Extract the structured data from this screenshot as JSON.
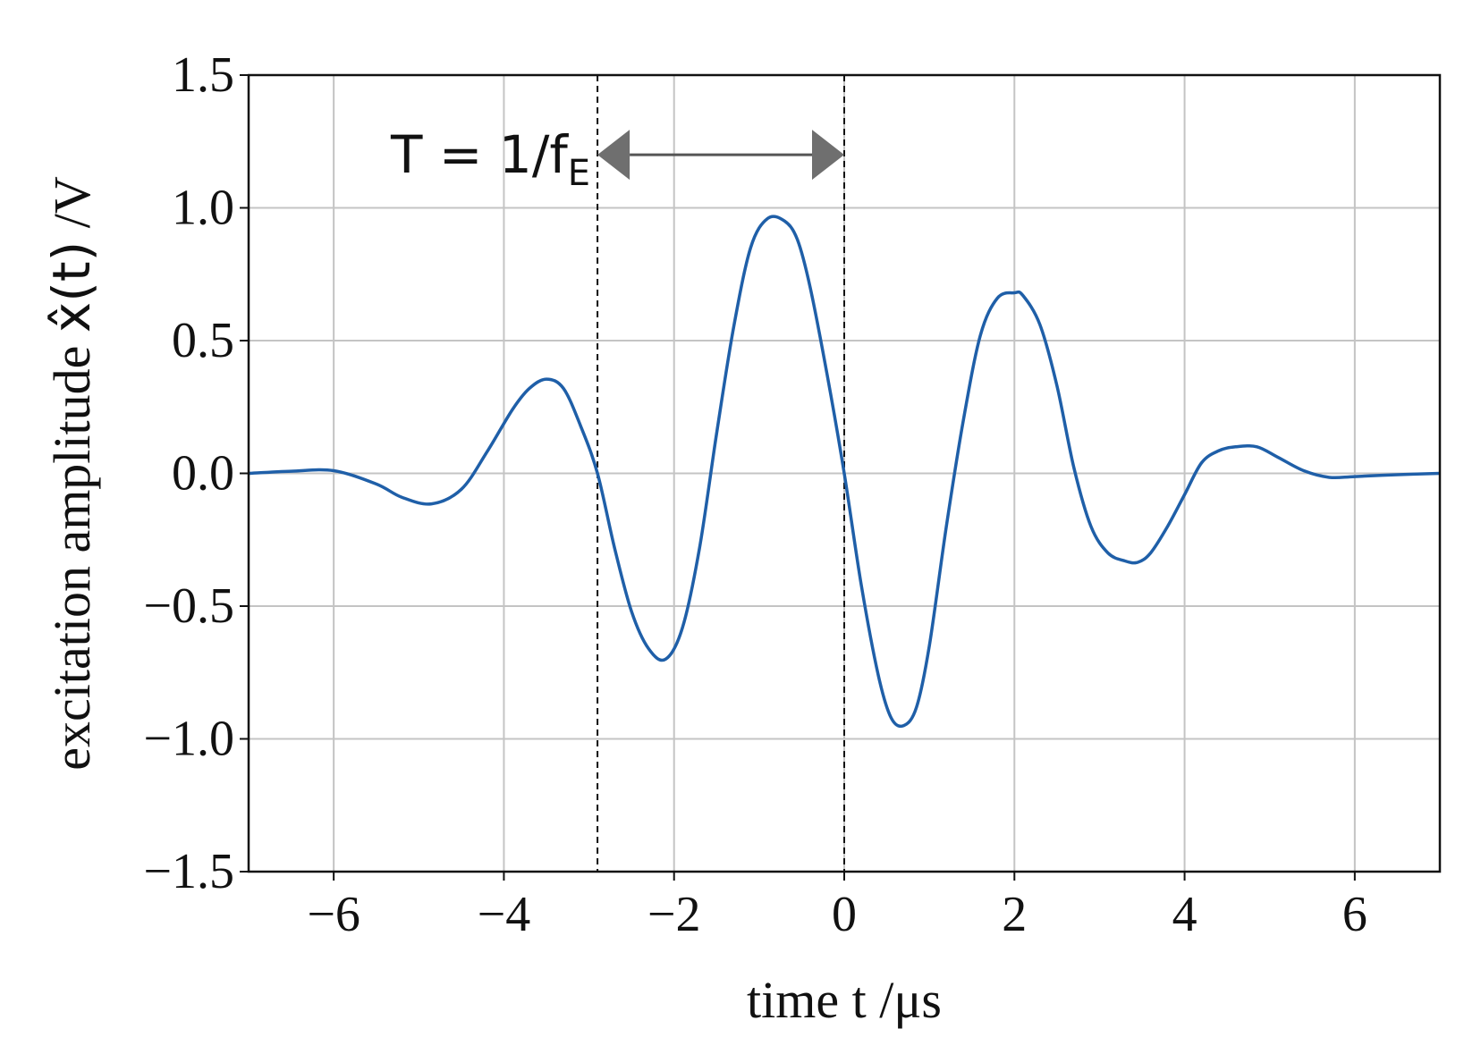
{
  "chart_data": {
    "type": "line",
    "title": "",
    "xlabel": "time t /μs",
    "ylabel_parts": {
      "prefix": "excitation amplitude ",
      "symbol": "x̂(t)",
      "suffix": " /V"
    },
    "xlim": [
      -7,
      7
    ],
    "ylim": [
      -1.5,
      1.5
    ],
    "xticks": [
      -6,
      -4,
      -2,
      0,
      2,
      4,
      6
    ],
    "xtick_labels": [
      "−6",
      "−4",
      "−2",
      "0",
      "2",
      "4",
      "6"
    ],
    "yticks": [
      1.5,
      1.0,
      0.5,
      0.0,
      -0.5,
      -1.0,
      -1.5
    ],
    "ytick_labels": [
      "1.5",
      "1.0",
      "0.5",
      "0.0",
      "−0.5",
      "−1.0",
      "−1.5"
    ],
    "grid": true,
    "series": [
      {
        "color": "#1f5fa8",
        "x": [
          -7.0,
          -6.5,
          -6.0,
          -5.5,
          -5.2,
          -4.85,
          -4.5,
          -4.2,
          -3.9,
          -3.7,
          -3.5,
          -3.3,
          -3.1,
          -2.9,
          -2.7,
          -2.5,
          -2.3,
          -2.1,
          -1.9,
          -1.7,
          -1.5,
          -1.3,
          -1.1,
          -0.9,
          -0.7,
          -0.55,
          -0.4,
          -0.2,
          0.0,
          0.2,
          0.4,
          0.55,
          0.7,
          0.85,
          1.0,
          1.2,
          1.4,
          1.6,
          1.8,
          2.0,
          2.1,
          2.3,
          2.5,
          2.7,
          2.9,
          3.1,
          3.3,
          3.45,
          3.6,
          3.8,
          4.0,
          4.2,
          4.4,
          4.6,
          4.85,
          5.1,
          5.4,
          5.7,
          6.0,
          6.5,
          7.0
        ],
        "y": [
          0.0,
          0.008,
          0.01,
          -0.04,
          -0.09,
          -0.115,
          -0.06,
          0.08,
          0.24,
          0.32,
          0.355,
          0.32,
          0.18,
          0.0,
          -0.28,
          -0.52,
          -0.66,
          -0.7,
          -0.58,
          -0.28,
          0.15,
          0.55,
          0.85,
          0.96,
          0.95,
          0.88,
          0.7,
          0.37,
          0.0,
          -0.42,
          -0.76,
          -0.92,
          -0.95,
          -0.88,
          -0.65,
          -0.2,
          0.2,
          0.52,
          0.66,
          0.68,
          0.67,
          0.56,
          0.33,
          0.02,
          -0.2,
          -0.3,
          -0.33,
          -0.335,
          -0.3,
          -0.2,
          -0.08,
          0.04,
          0.085,
          0.1,
          0.1,
          0.06,
          0.01,
          -0.015,
          -0.012,
          -0.005,
          0.0
        ]
      }
    ],
    "annotations": {
      "vlines_x": [
        -2.9,
        0.0
      ],
      "period_arrow": {
        "x_start": -2.9,
        "x_end": 0.0,
        "y": 1.2,
        "label_main": "T = 1/f",
        "label_sub": "E"
      }
    }
  }
}
